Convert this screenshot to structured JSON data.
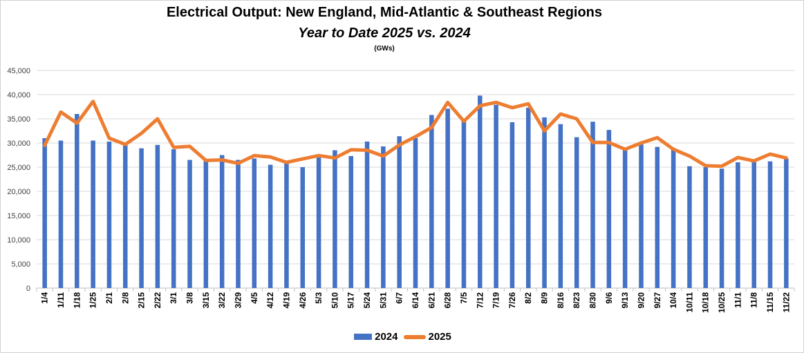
{
  "header": {
    "title": "Electrical Output:  New England, Mid-Atlantic & Southeast Regions",
    "subtitle": "Year to Date 2025 vs. 2024",
    "units": "(GWs)"
  },
  "colors": {
    "bar_2024": "#4472C4",
    "line_2025": "#ED7D31",
    "grid": "#d9d9d9"
  },
  "chart_data": {
    "type": "bar",
    "title": "Electrical Output:  New England, Mid-Atlantic & Southeast Regions",
    "subtitle": "Year to Date 2025 vs. 2024",
    "units": "(GWs)",
    "ylim": [
      0,
      45000
    ],
    "yticks": [
      0,
      5000,
      10000,
      15000,
      20000,
      25000,
      30000,
      35000,
      40000,
      45000
    ],
    "ytick_labels": [
      "0",
      "5,000",
      "10,000",
      "15,000",
      "20,000",
      "25,000",
      "30,000",
      "35,000",
      "40,000",
      "45,000"
    ],
    "grid": true,
    "legend_position": "bottom",
    "categories": [
      "1/4",
      "1/11",
      "1/18",
      "1/25",
      "2/1",
      "2/8",
      "2/15",
      "2/22",
      "3/1",
      "3/8",
      "3/15",
      "3/22",
      "3/29",
      "4/5",
      "4/12",
      "4/19",
      "4/26",
      "5/3",
      "5/10",
      "5/17",
      "5/24",
      "5/31",
      "6/7",
      "6/14",
      "6/21",
      "6/28",
      "7/5",
      "7/12",
      "7/19",
      "7/26",
      "8/2",
      "8/9",
      "8/16",
      "8/23",
      "8/30",
      "9/6",
      "9/13",
      "9/20",
      "9/27",
      "10/4",
      "10/11",
      "10/18",
      "10/25",
      "11/1",
      "11/8",
      "11/15",
      "11/22"
    ],
    "series": [
      {
        "name": "2024",
        "type": "bar",
        "values": [
          31000,
          30500,
          36000,
          30500,
          30300,
          29800,
          28900,
          29600,
          28700,
          26500,
          26300,
          27500,
          26500,
          26800,
          25500,
          25900,
          25000,
          27000,
          28500,
          27300,
          30300,
          29300,
          31400,
          31000,
          35800,
          37100,
          34600,
          39800,
          37900,
          34300,
          37300,
          35300,
          33900,
          31200,
          34400,
          32700,
          28700,
          29700,
          29200,
          28800,
          25200,
          25000,
          24700,
          26000,
          26100,
          26200,
          26800
        ]
      },
      {
        "name": "2025",
        "type": "line",
        "values": [
          29500,
          36400,
          34100,
          38600,
          31000,
          29700,
          32000,
          35000,
          29100,
          29300,
          26400,
          26500,
          25800,
          27400,
          27100,
          26000,
          26700,
          27400,
          26900,
          28600,
          28500,
          27300,
          29600,
          31300,
          33200,
          38400,
          34500,
          37700,
          38400,
          37300,
          38100,
          32500,
          36000,
          35000,
          30100,
          30100,
          28700,
          30000,
          31100,
          28700,
          27300,
          25300,
          25200,
          27000,
          26300,
          27700,
          26900
        ]
      }
    ]
  }
}
